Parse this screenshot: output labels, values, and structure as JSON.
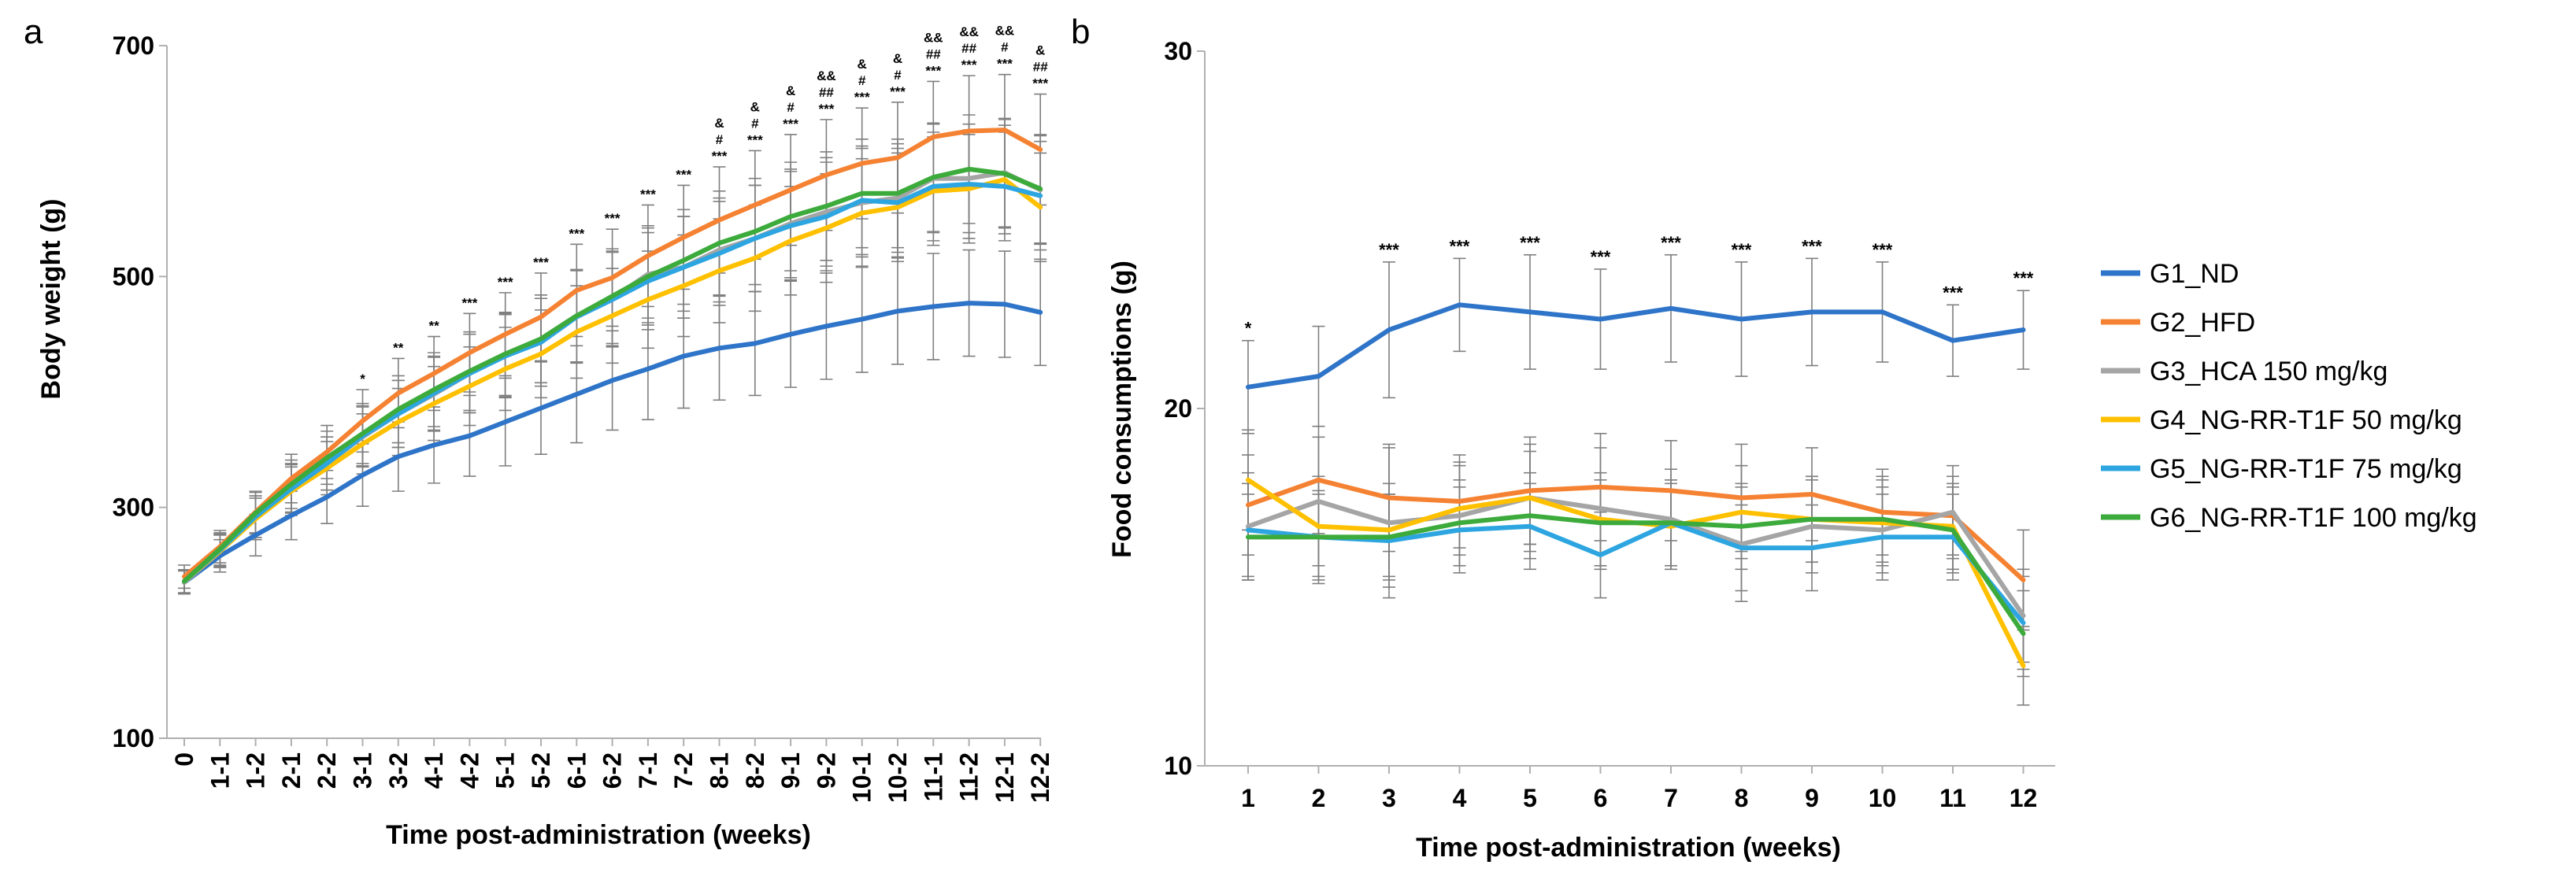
{
  "chart_data": [
    {
      "panel": "a",
      "type": "line",
      "xlabel": "Time post-administration (weeks)",
      "ylabel": "Body weight (g)",
      "ylim": [
        100,
        700
      ],
      "yticks": [
        100,
        300,
        500,
        700
      ],
      "categories": [
        "0",
        "1-1",
        "1-2",
        "2-1",
        "2-2",
        "3-1",
        "3-2",
        "4-1",
        "4-2",
        "5-1",
        "5-2",
        "6-1",
        "6-2",
        "7-1",
        "7-2",
        "8-1",
        "8-2",
        "9-1",
        "9-2",
        "10-1",
        "10-2",
        "11-1",
        "11-2",
        "12-1",
        "12-2"
      ],
      "series": [
        {
          "name": "G1_ND",
          "color": "#2e74c8",
          "values": [
            235,
            258,
            276,
            293,
            309,
            328,
            344,
            354,
            362,
            374,
            386,
            398,
            410,
            420,
            431,
            438,
            442,
            450,
            457,
            463,
            470,
            474,
            477,
            476,
            469
          ],
          "errors": [
            10,
            14,
            18,
            21,
            23,
            27,
            30,
            33,
            35,
            38,
            40,
            42,
            43,
            44,
            45,
            45,
            45,
            46,
            46,
            46,
            46,
            46,
            46,
            46,
            46
          ]
        },
        {
          "name": "G2_HFD",
          "color": "#f58232",
          "values": [
            240,
            266,
            296,
            325,
            348,
            375,
            399,
            416,
            434,
            450,
            465,
            488,
            499,
            518,
            534,
            549,
            562,
            575,
            588,
            598,
            603,
            621,
            626,
            627,
            610
          ],
          "errors": [
            10,
            14,
            18,
            21,
            23,
            27,
            30,
            32,
            34,
            36,
            38,
            40,
            42,
            44,
            45,
            46,
            47,
            48,
            48,
            48,
            48,
            48,
            48,
            48,
            48
          ]
        },
        {
          "name": "G3_HCA 150 mg/kg",
          "color": "#a5a5a5",
          "values": [
            235,
            262,
            292,
            317,
            338,
            361,
            381,
            398,
            416,
            432,
            446,
            466,
            481,
            502,
            508,
            523,
            533,
            546,
            556,
            564,
            568,
            585,
            585,
            590,
            575
          ],
          "errors": [
            10,
            14,
            18,
            21,
            23,
            26,
            29,
            32,
            34,
            36,
            38,
            40,
            41,
            42,
            44,
            45,
            46,
            47,
            47,
            47,
            47,
            47,
            47,
            47,
            47
          ]
        },
        {
          "name": "G4_NG-RR-T1F 50 mg/kg",
          "color": "#ffc000",
          "values": [
            236,
            262,
            290,
            314,
            334,
            355,
            374,
            390,
            405,
            420,
            433,
            452,
            466,
            480,
            492,
            505,
            516,
            531,
            542,
            555,
            560,
            574,
            576,
            584,
            560
          ],
          "errors": [
            10,
            14,
            18,
            21,
            23,
            26,
            29,
            32,
            34,
            36,
            38,
            40,
            41,
            42,
            44,
            45,
            46,
            47,
            47,
            47,
            47,
            47,
            47,
            47,
            47
          ]
        },
        {
          "name": "G5_NG-RR-T1F 75 mg/kg",
          "color": "#2da5e0",
          "values": [
            236,
            263,
            292,
            316,
            338,
            362,
            381,
            399,
            416,
            431,
            443,
            465,
            480,
            496,
            508,
            520,
            533,
            544,
            552,
            566,
            564,
            578,
            580,
            578,
            570
          ],
          "errors": [
            10,
            14,
            18,
            21,
            23,
            26,
            29,
            32,
            34,
            36,
            38,
            40,
            41,
            42,
            44,
            45,
            46,
            47,
            47,
            47,
            47,
            47,
            47,
            47,
            47
          ]
        },
        {
          "name": "G6_NG-RR-T1F 100 mg/kg",
          "color": "#3cab3c",
          "values": [
            236,
            264,
            295,
            320,
            343,
            364,
            385,
            402,
            418,
            433,
            446,
            466,
            483,
            500,
            514,
            529,
            539,
            552,
            561,
            572,
            572,
            586,
            593,
            589,
            576
          ],
          "errors": [
            10,
            14,
            18,
            21,
            23,
            26,
            29,
            32,
            34,
            36,
            38,
            40,
            41,
            42,
            44,
            45,
            46,
            47,
            47,
            47,
            47,
            47,
            47,
            47,
            47
          ]
        }
      ],
      "annotations": [
        {
          "index": 5,
          "labels": [
            "*"
          ]
        },
        {
          "index": 6,
          "labels": [
            "**"
          ]
        },
        {
          "index": 7,
          "labels": [
            "**"
          ]
        },
        {
          "index": 8,
          "labels": [
            "***"
          ]
        },
        {
          "index": 9,
          "labels": [
            "***"
          ]
        },
        {
          "index": 10,
          "labels": [
            "***"
          ]
        },
        {
          "index": 11,
          "labels": [
            "***"
          ]
        },
        {
          "index": 12,
          "labels": [
            "***"
          ]
        },
        {
          "index": 13,
          "labels": [
            "***"
          ]
        },
        {
          "index": 14,
          "labels": [
            "***"
          ]
        },
        {
          "index": 15,
          "labels": [
            "&",
            "#",
            "***"
          ]
        },
        {
          "index": 16,
          "labels": [
            "&",
            "#",
            "***"
          ]
        },
        {
          "index": 17,
          "labels": [
            "&",
            "#",
            "***"
          ]
        },
        {
          "index": 18,
          "labels": [
            "&&",
            "##",
            "***"
          ]
        },
        {
          "index": 19,
          "labels": [
            "&",
            "#",
            "***"
          ]
        },
        {
          "index": 20,
          "labels": [
            "&",
            "#",
            "***"
          ]
        },
        {
          "index": 21,
          "labels": [
            "&&",
            "##",
            "***"
          ]
        },
        {
          "index": 22,
          "labels": [
            "&&",
            "##",
            "***"
          ]
        },
        {
          "index": 23,
          "labels": [
            "&&",
            "#",
            "***"
          ]
        },
        {
          "index": 24,
          "labels": [
            "&",
            "##",
            "***"
          ]
        }
      ]
    },
    {
      "panel": "b",
      "type": "line",
      "xlabel": "Time post-administration (weeks)",
      "ylabel": "Food consumptions (g)",
      "ylim": [
        10,
        30
      ],
      "yticks": [
        10,
        20,
        30
      ],
      "categories": [
        "1",
        "2",
        "3",
        "4",
        "5",
        "6",
        "7",
        "8",
        "9",
        "10",
        "11",
        "12"
      ],
      "series": [
        {
          "name": "G1_ND",
          "color": "#2e74c8",
          "values": [
            20.6,
            20.9,
            22.2,
            22.9,
            22.7,
            22.5,
            22.8,
            22.5,
            22.7,
            22.7,
            21.9,
            22.2
          ],
          "errors": [
            1.3,
            1.4,
            1.9,
            1.3,
            1.6,
            1.4,
            1.5,
            1.6,
            1.5,
            1.4,
            1.0,
            1.1
          ]
        },
        {
          "name": "G2_HFD",
          "color": "#f58232",
          "values": [
            17.3,
            18.0,
            17.5,
            17.4,
            17.7,
            17.8,
            17.7,
            17.5,
            17.6,
            17.1,
            17.0,
            15.2
          ],
          "errors": [
            1.4,
            1.5,
            1.5,
            1.3,
            1.5,
            1.5,
            1.4,
            1.5,
            1.3,
            1.2,
            1.1,
            1.4
          ]
        },
        {
          "name": "G3_HCA 150 mg/kg",
          "color": "#a5a5a5",
          "values": [
            16.7,
            17.4,
            16.8,
            17.0,
            17.5,
            17.2,
            16.9,
            16.2,
            16.7,
            16.6,
            17.1,
            14.2
          ],
          "errors": [
            1.5,
            1.8,
            2.1,
            1.4,
            1.5,
            1.7,
            1.4,
            1.6,
            1.3,
            1.2,
            1.3,
            1.3
          ]
        },
        {
          "name": "G4_NG-RR-T1F 50 mg/kg",
          "color": "#ffc000",
          "values": [
            18.0,
            16.7,
            16.6,
            17.2,
            17.5,
            16.9,
            16.7,
            17.1,
            16.9,
            16.8,
            16.7,
            12.8
          ],
          "errors": [
            1.4,
            1.4,
            1.3,
            1.3,
            1.3,
            1.3,
            1.2,
            1.3,
            1.2,
            1.2,
            1.2,
            1.1
          ]
        },
        {
          "name": "G5_NG-RR-T1F 75 mg/kg",
          "color": "#2da5e0",
          "values": [
            16.6,
            16.4,
            16.3,
            16.6,
            16.7,
            15.9,
            16.8,
            16.1,
            16.1,
            16.4,
            16.4,
            14.0
          ],
          "errors": [
            1.3,
            1.3,
            1.3,
            1.2,
            1.2,
            1.2,
            1.2,
            1.2,
            1.2,
            1.2,
            1.2,
            1.3
          ]
        },
        {
          "name": "G6_NG-RR-T1F 100 mg/kg",
          "color": "#3cab3c",
          "values": [
            16.4,
            16.4,
            16.4,
            16.8,
            17.0,
            16.8,
            16.8,
            16.7,
            16.9,
            16.9,
            16.6,
            13.7
          ],
          "errors": [
            1.2,
            1.2,
            1.2,
            1.2,
            1.2,
            1.2,
            1.2,
            1.2,
            1.2,
            1.2,
            1.2,
            1.2
          ]
        }
      ],
      "annotations": [
        {
          "index": 0,
          "labels": [
            "*"
          ]
        },
        {
          "index": 2,
          "labels": [
            "***"
          ]
        },
        {
          "index": 3,
          "labels": [
            "***"
          ]
        },
        {
          "index": 4,
          "labels": [
            "***"
          ]
        },
        {
          "index": 5,
          "labels": [
            "***"
          ]
        },
        {
          "index": 6,
          "labels": [
            "***"
          ]
        },
        {
          "index": 7,
          "labels": [
            "***"
          ]
        },
        {
          "index": 8,
          "labels": [
            "***"
          ]
        },
        {
          "index": 9,
          "labels": [
            "***"
          ]
        },
        {
          "index": 10,
          "labels": [
            "***"
          ]
        },
        {
          "index": 11,
          "labels": [
            "***"
          ]
        }
      ],
      "legend": [
        "G1_ND",
        "G2_HFD",
        "G3_HCA 150 mg/kg",
        "G4_NG-RR-T1F 50 mg/kg",
        "G5_NG-RR-T1F 75 mg/kg",
        "G6_NG-RR-T1F 100 mg/kg"
      ]
    }
  ],
  "panels": {
    "a": "a",
    "b": "b"
  }
}
